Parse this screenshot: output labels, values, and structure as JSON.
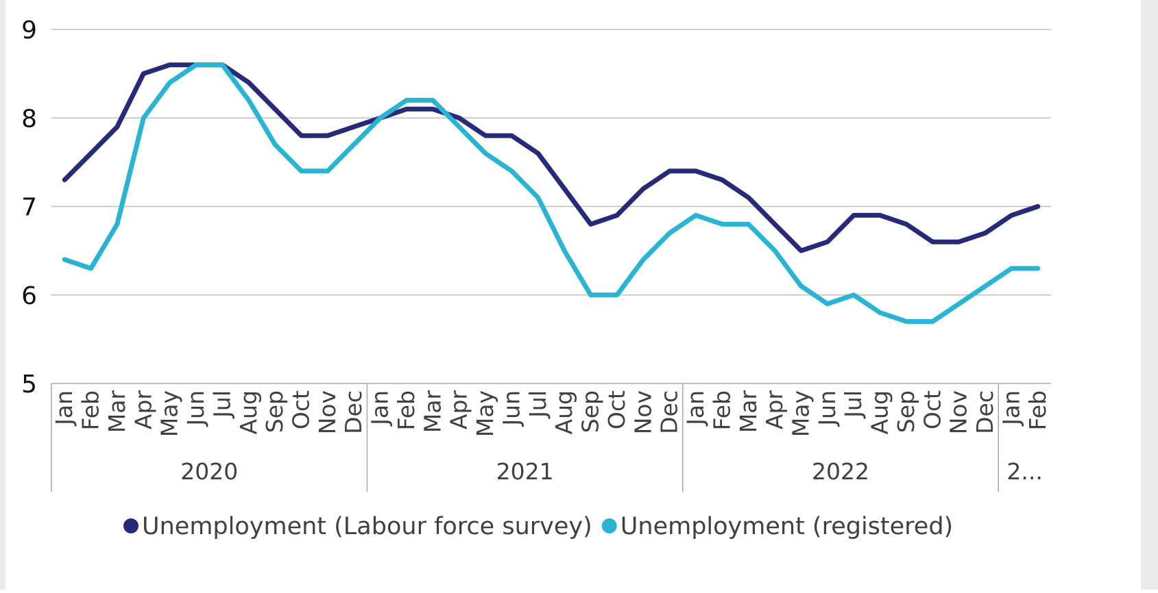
{
  "chart_data": {
    "type": "line",
    "title": "",
    "xlabel": "",
    "ylabel": "",
    "ylim": [
      5,
      9
    ],
    "yticks": [
      "5",
      "6",
      "7",
      "8",
      "9"
    ],
    "grid": true,
    "legend_position": "bottom",
    "colors": {
      "lfs": "#262a78",
      "registered": "#2ab4d4",
      "grid": "#bfbfbf",
      "axis": "#a6a6a6"
    },
    "months": [
      "Jan",
      "Feb",
      "Mar",
      "Apr",
      "May",
      "Jun",
      "Jul",
      "Aug",
      "Sep",
      "Oct",
      "Nov",
      "Dec",
      "Jan",
      "Feb",
      "Mar",
      "Apr",
      "May",
      "Jun",
      "Jul",
      "Aug",
      "Sep",
      "Oct",
      "Nov",
      "Dec",
      "Jan",
      "Feb",
      "Mar",
      "Apr",
      "May",
      "Jun",
      "Jul",
      "Aug",
      "Sep",
      "Oct",
      "Nov",
      "Dec",
      "Jan",
      "Feb"
    ],
    "years": [
      {
        "label": "2020",
        "months": 12
      },
      {
        "label": "2021",
        "months": 12
      },
      {
        "label": "2022",
        "months": 12
      },
      {
        "label": "2...",
        "months": 2
      }
    ],
    "series": [
      {
        "name": "Unemployment (Labour force survey)",
        "color": "#262a78",
        "values": [
          7.3,
          7.6,
          7.9,
          8.5,
          8.6,
          8.6,
          8.6,
          8.4,
          8.1,
          7.8,
          7.8,
          7.9,
          8.0,
          8.1,
          8.1,
          8.0,
          7.8,
          7.8,
          7.6,
          7.2,
          6.8,
          6.9,
          7.2,
          7.4,
          7.4,
          7.3,
          7.1,
          6.8,
          6.5,
          6.6,
          6.9,
          6.9,
          6.8,
          6.6,
          6.6,
          6.7,
          6.9,
          7.0
        ]
      },
      {
        "name": "Unemployment (registered)",
        "color": "#2ab4d4",
        "values": [
          6.4,
          6.3,
          6.8,
          8.0,
          8.4,
          8.6,
          8.6,
          8.2,
          7.7,
          7.4,
          7.4,
          7.7,
          8.0,
          8.2,
          8.2,
          7.9,
          7.6,
          7.4,
          7.1,
          6.5,
          6.0,
          6.0,
          6.4,
          6.7,
          6.9,
          6.8,
          6.8,
          6.5,
          6.1,
          5.9,
          6.0,
          5.8,
          5.7,
          5.7,
          5.9,
          6.1,
          6.3,
          6.3
        ]
      }
    ]
  }
}
